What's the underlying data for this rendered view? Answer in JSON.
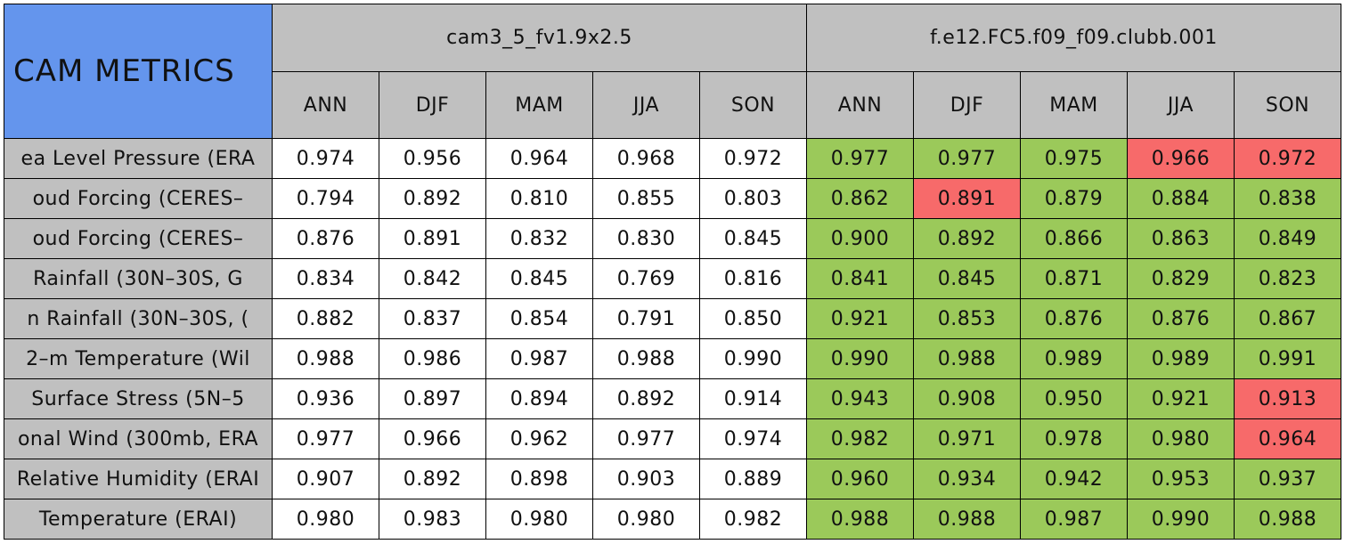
{
  "table": {
    "corner": "CAM METRICS",
    "groups": [
      "cam3_5_fv1.9x2.5",
      "f.e12.FC5.f09_f09.clubb.001"
    ],
    "seasons": [
      "ANN",
      "DJF",
      "MAM",
      "JJA",
      "SON"
    ],
    "rows": [
      {
        "label": "ea Level Pressure (ERA",
        "base": [
          "0.974",
          "0.956",
          "0.964",
          "0.968",
          "0.972"
        ],
        "test": [
          "0.977",
          "0.977",
          "0.975",
          "0.966",
          "0.972"
        ],
        "test_colors": [
          "#9bc95a",
          "#9bc95a",
          "#9bc95a",
          "#f76a6a",
          "#f76a6a"
        ]
      },
      {
        "label": "oud Forcing (CERES–",
        "base": [
          "0.794",
          "0.892",
          "0.810",
          "0.855",
          "0.803"
        ],
        "test": [
          "0.862",
          "0.891",
          "0.879",
          "0.884",
          "0.838"
        ],
        "test_colors": [
          "#9bc95a",
          "#f76a6a",
          "#9bc95a",
          "#9bc95a",
          "#9bc95a"
        ]
      },
      {
        "label": "oud Forcing (CERES–",
        "base": [
          "0.876",
          "0.891",
          "0.832",
          "0.830",
          "0.845"
        ],
        "test": [
          "0.900",
          "0.892",
          "0.866",
          "0.863",
          "0.849"
        ],
        "test_colors": [
          "#9bc95a",
          "#9bc95a",
          "#9bc95a",
          "#9bc95a",
          "#9bc95a"
        ]
      },
      {
        "label": "Rainfall (30N–30S, G",
        "base": [
          "0.834",
          "0.842",
          "0.845",
          "0.769",
          "0.816"
        ],
        "test": [
          "0.841",
          "0.845",
          "0.871",
          "0.829",
          "0.823"
        ],
        "test_colors": [
          "#9bc95a",
          "#9bc95a",
          "#9bc95a",
          "#9bc95a",
          "#9bc95a"
        ]
      },
      {
        "label": "n Rainfall (30N–30S, (",
        "base": [
          "0.882",
          "0.837",
          "0.854",
          "0.791",
          "0.850"
        ],
        "test": [
          "0.921",
          "0.853",
          "0.876",
          "0.876",
          "0.867"
        ],
        "test_colors": [
          "#9bc95a",
          "#9bc95a",
          "#9bc95a",
          "#9bc95a",
          "#9bc95a"
        ]
      },
      {
        "label": "2–m Temperature (Wil",
        "base": [
          "0.988",
          "0.986",
          "0.987",
          "0.988",
          "0.990"
        ],
        "test": [
          "0.990",
          "0.988",
          "0.989",
          "0.989",
          "0.991"
        ],
        "test_colors": [
          "#9bc95a",
          "#9bc95a",
          "#9bc95a",
          "#9bc95a",
          "#9bc95a"
        ]
      },
      {
        "label": "Surface Stress (5N–5",
        "base": [
          "0.936",
          "0.897",
          "0.894",
          "0.892",
          "0.914"
        ],
        "test": [
          "0.943",
          "0.908",
          "0.950",
          "0.921",
          "0.913"
        ],
        "test_colors": [
          "#9bc95a",
          "#9bc95a",
          "#9bc95a",
          "#9bc95a",
          "#f76a6a"
        ]
      },
      {
        "label": "onal Wind (300mb, ERA",
        "base": [
          "0.977",
          "0.966",
          "0.962",
          "0.977",
          "0.974"
        ],
        "test": [
          "0.982",
          "0.971",
          "0.978",
          "0.980",
          "0.964"
        ],
        "test_colors": [
          "#9bc95a",
          "#9bc95a",
          "#9bc95a",
          "#9bc95a",
          "#f76a6a"
        ]
      },
      {
        "label": "Relative Humidity (ERAI",
        "base": [
          "0.907",
          "0.892",
          "0.898",
          "0.903",
          "0.889"
        ],
        "test": [
          "0.960",
          "0.934",
          "0.942",
          "0.953",
          "0.937"
        ],
        "test_colors": [
          "#9bc95a",
          "#9bc95a",
          "#9bc95a",
          "#9bc95a",
          "#9bc95a"
        ]
      },
      {
        "label": "Temperature (ERAI)",
        "base": [
          "0.980",
          "0.983",
          "0.980",
          "0.980",
          "0.982"
        ],
        "test": [
          "0.988",
          "0.988",
          "0.987",
          "0.990",
          "0.988"
        ],
        "test_colors": [
          "#9bc95a",
          "#9bc95a",
          "#9bc95a",
          "#9bc95a",
          "#9bc95a"
        ]
      }
    ]
  }
}
